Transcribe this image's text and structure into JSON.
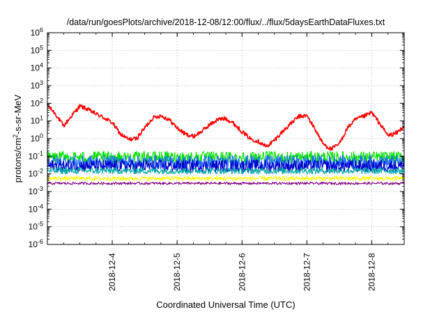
{
  "chart_data": {
    "type": "line",
    "title": "/data/run/goesPlots/archive/2018-12-08/12:00/flux/../flux/5daysEarthDataFluxes.txt",
    "xlabel": "Coordinated Universal Time (UTC)",
    "ylabel": {
      "prefix": "protons/cm",
      "sup": "2",
      "suffix": "-s-sr-MeV"
    },
    "y_scale": "log",
    "ylim_exponent": [
      -6,
      6
    ],
    "y_tick_base": "10",
    "y_tick_exponents": [
      "-6",
      "-5",
      "-4",
      "-3",
      "-2",
      "-1",
      "0",
      "1",
      "2",
      "3",
      "4",
      "5",
      "6"
    ],
    "xlim": [
      "2018-12-03T00:00",
      "2018-12-08T12:00"
    ],
    "x_ticks": [
      "2018-12-4",
      "2018-12-5",
      "2018-12-6",
      "2018-12-7",
      "2018-12-8"
    ],
    "grid": true,
    "legend": "none",
    "series": [
      {
        "color": "#ff0000",
        "noise": 0.12,
        "x": [
          "2018-12-03T00:00",
          "2018-12-03T03:00",
          "2018-12-03T06:00",
          "2018-12-03T09:00",
          "2018-12-03T12:00",
          "2018-12-03T15:00",
          "2018-12-03T18:00",
          "2018-12-03T21:00",
          "2018-12-04T00:00",
          "2018-12-04T03:00",
          "2018-12-04T06:00",
          "2018-12-04T09:00",
          "2018-12-04T12:00",
          "2018-12-04T15:00",
          "2018-12-04T18:00",
          "2018-12-04T21:00",
          "2018-12-05T00:00",
          "2018-12-05T03:00",
          "2018-12-05T06:00",
          "2018-12-05T09:00",
          "2018-12-05T12:00",
          "2018-12-05T15:00",
          "2018-12-05T18:00",
          "2018-12-05T21:00",
          "2018-12-06T00:00",
          "2018-12-06T03:00",
          "2018-12-06T06:00",
          "2018-12-06T09:00",
          "2018-12-06T12:00",
          "2018-12-06T15:00",
          "2018-12-06T18:00",
          "2018-12-06T21:00",
          "2018-12-07T00:00",
          "2018-12-07T03:00",
          "2018-12-07T06:00",
          "2018-12-07T09:00",
          "2018-12-07T12:00",
          "2018-12-07T15:00",
          "2018-12-07T18:00",
          "2018-12-07T21:00",
          "2018-12-08T00:00",
          "2018-12-08T03:00",
          "2018-12-08T06:00",
          "2018-12-08T09:00",
          "2018-12-08T12:00"
        ],
        "y": [
          80,
          25,
          5,
          20,
          70,
          45,
          25,
          15,
          8,
          1.8,
          0.9,
          1.0,
          4,
          15,
          20,
          12,
          4,
          1.8,
          1.3,
          2.5,
          6,
          12,
          14,
          7,
          2.5,
          1.0,
          0.7,
          0.35,
          0.8,
          2.5,
          7,
          18,
          20,
          3.5,
          0.5,
          0.25,
          0.5,
          4,
          12,
          18,
          30,
          7,
          1.5,
          2,
          5
        ]
      },
      {
        "color": "#00e000",
        "base": 0.085,
        "noise": 0.35
      },
      {
        "color": "#1e6cff",
        "base": 0.045,
        "noise": 0.4
      },
      {
        "color": "#0000c8",
        "base": 0.028,
        "noise": 0.35
      },
      {
        "color": "#00a8a8",
        "base": 0.015,
        "noise": 0.18
      },
      {
        "color": "#ffff00",
        "base": 0.0055,
        "noise": 0.12
      },
      {
        "color": "#800080",
        "base": 0.0029,
        "noise": 0.07
      }
    ]
  }
}
